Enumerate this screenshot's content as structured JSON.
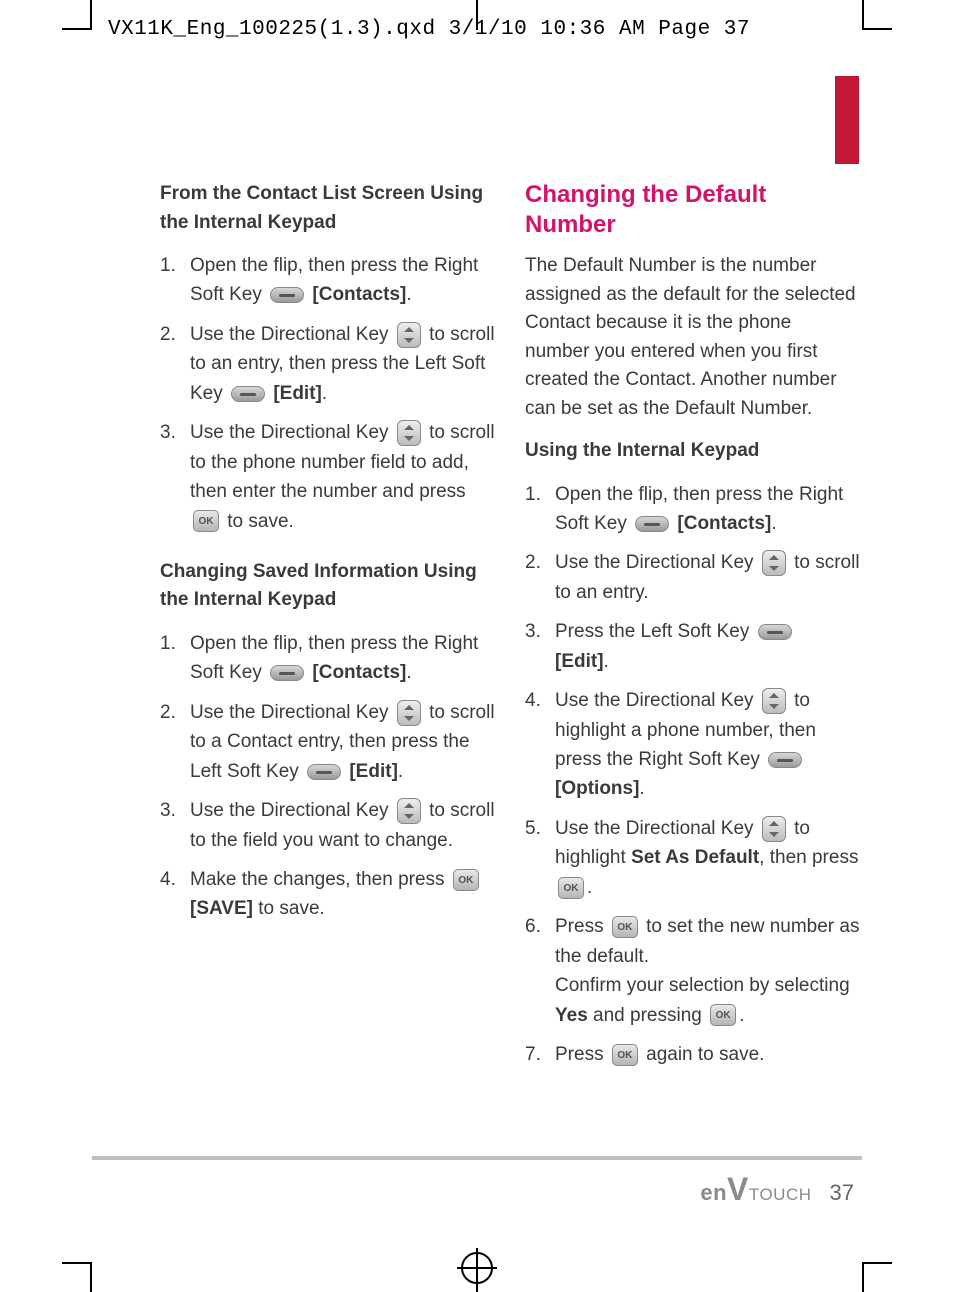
{
  "meta": {
    "header_slug": "VX11K_Eng_100225(1.3).qxd  3/1/10  10:36 AM  Page 37",
    "page_number": "37",
    "brand_prefix": "en",
    "brand_v": "V",
    "brand_suffix": "TOUCH"
  },
  "colors": {
    "pink_heading": "#d6116d",
    "red_tab": "#c01835",
    "body_text": "#3a3a3a",
    "rule": "#bfbfbf",
    "brand_gray": "#8a8a8a"
  },
  "left": {
    "h1": "From the Contact List Screen Using the Internal Keypad",
    "list1": {
      "i1a": "Open the flip, then press the Right Soft Key ",
      "i1b": "[Contacts]",
      "i1c": ".",
      "i2a": "Use the Directional Key ",
      "i2b": " to scroll to an entry, then press the Left Soft Key ",
      "i2c": "[Edit]",
      "i2d": ".",
      "i3a": "Use the Directional Key ",
      "i3b": " to scroll to the phone number field to add, then enter the number and press ",
      "i3c": " to save."
    },
    "h2": "Changing Saved Information Using the Internal Keypad",
    "list2": {
      "i1a": "Open the flip, then press the Right Soft Key ",
      "i1b": "[Contacts]",
      "i1c": ".",
      "i2a": "Use the Directional Key ",
      "i2b": " to scroll to a Contact entry, then press the Left Soft Key ",
      "i2c": "[Edit]",
      "i2d": ".",
      "i3a": "Use the Directional Key ",
      "i3b": " to scroll to the field you want to change.",
      "i4a": "Make the changes, then press ",
      "i4b": "[SAVE]",
      "i4c": " to save."
    }
  },
  "right": {
    "title": "Changing the Default Number",
    "intro": "The Default Number is the number assigned as the default for the selected Contact because it is the phone number you entered when you first created the Contact. Another number can be set as the Default Number.",
    "h1": "Using the Internal Keypad",
    "list": {
      "i1a": "Open the flip, then press the Right Soft Key ",
      "i1b": "[Contacts]",
      "i1c": ".",
      "i2a": "Use the Directional Key ",
      "i2b": " to scroll to an entry.",
      "i3a": "Press the Left Soft Key ",
      "i3b": "[Edit]",
      "i3c": ".",
      "i4a": "Use the Directional Key ",
      "i4b": " to highlight a phone number, then press the Right Soft Key ",
      "i4c": "[Options]",
      "i4d": ".",
      "i5a": "Use the Directional Key ",
      "i5b": " to highlight ",
      "i5c": "Set As Default",
      "i5d": ", then press ",
      "i5e": ".",
      "i6a": "Press ",
      "i6b": " to set the new number as the default.",
      "i6c": "Confirm your selection by selecting ",
      "i6d": "Yes",
      "i6e": " and pressing ",
      "i6f": ".",
      "i7a": "Press ",
      "i7b": " again to save."
    }
  },
  "ok_label": "OK"
}
